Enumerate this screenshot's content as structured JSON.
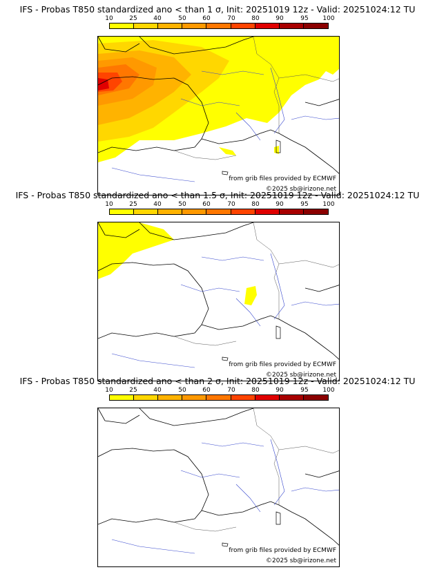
{
  "legend": {
    "ticks": [
      "10",
      "25",
      "40",
      "50",
      "60",
      "70",
      "80",
      "90",
      "95",
      "100"
    ],
    "colors": [
      "#ffff00",
      "#ffd700",
      "#ffb300",
      "#ff9900",
      "#ff7700",
      "#ff4400",
      "#e00000",
      "#a80000",
      "#8b0000"
    ]
  },
  "panels": [
    {
      "title": "IFS - Probas T850  standardized ano < than 1 σ, Init: 20251019 12z - Valid: 20251024:12 TU",
      "source_note": "from grib files provided by ECMWF",
      "copyright": "©2025 sb@irizone.net"
    },
    {
      "title": "IFS - Probas T850  standardized ano < than 1.5 σ, Init: 20251019 12z - Valid: 20251024:12 TU",
      "source_note": "from grib files provided by ECMWF",
      "copyright": "©2025 sb@irizone.net"
    },
    {
      "title": "IFS - Probas T850  standardized ano < than 2 σ, Init: 20251019 12z - Valid: 20251024:12 TU",
      "source_note": "from grib files provided by ECMWF",
      "copyright": "©2025 sb@irizone.net"
    }
  ]
}
